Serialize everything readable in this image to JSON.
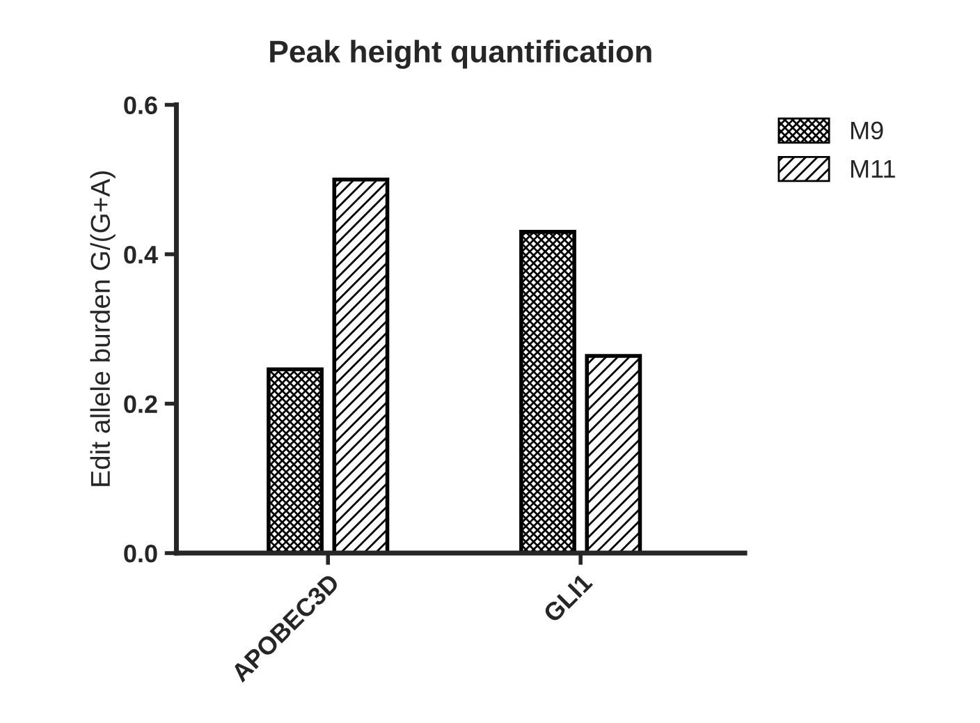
{
  "chart_data": {
    "type": "bar",
    "title": "Peak height quantification",
    "ylabel": "Edit allele burden G/(G+A)",
    "categories": [
      "APOBEC3D",
      "GLI1"
    ],
    "series": [
      {
        "name": "M9",
        "color": "#000000",
        "values": [
          0.246,
          0.43
        ]
      },
      {
        "name": "M11",
        "color": "#000000",
        "values": [
          0.5,
          0.264
        ]
      }
    ],
    "ylim": [
      0,
      0.6
    ],
    "yticks": [
      {
        "value": 0,
        "label": "0.0"
      },
      {
        "value": 0.2,
        "label": "0.2"
      },
      {
        "value": 0.4,
        "label": "0.4"
      },
      {
        "value": 0.6,
        "label": "0.6"
      }
    ],
    "grid": false,
    "legend": "top right"
  }
}
